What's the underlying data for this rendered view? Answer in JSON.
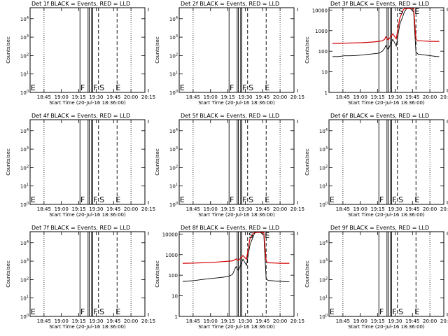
{
  "x_tick_labels": [
    "18:45",
    "19:00",
    "19:15",
    "19:30",
    "19:45",
    "20:00",
    "20:15"
  ],
  "x_label": "Start Time (20-Jul-16 18:36:00)",
  "y_label": "Counts/sec",
  "marker_labels": [
    "E",
    "F",
    "F",
    "S",
    "E"
  ],
  "colors": {
    "events": "#000000",
    "lld": "#d40000"
  },
  "chart_data": [
    {
      "type": "line",
      "title": "Det 1f BLACK = Events, RED = LLD",
      "y_tick_labels": [
        "10^0",
        "10^1",
        "10^2",
        "10^3",
        "10^4"
      ],
      "yscale": "log",
      "has_data": false,
      "series": []
    },
    {
      "type": "line",
      "title": "Det 2f BLACK = Events, RED = LLD",
      "y_tick_labels": [
        "10^0",
        "10^1",
        "10^2",
        "10^3",
        "10^4"
      ],
      "yscale": "log",
      "has_data": false,
      "series": []
    },
    {
      "type": "line",
      "title": "Det 3f BLACK = Events, RED = LLD",
      "y_tick_labels": [
        "1",
        "10",
        "100",
        "1000",
        "10000"
      ],
      "yscale": "log",
      "ylim": [
        1,
        13000
      ],
      "has_data": true,
      "series": [
        {
          "color": "#000000",
          "x": [
            0,
            5,
            10,
            15,
            20,
            25,
            30,
            35,
            40,
            43,
            45,
            46,
            48,
            52,
            55,
            58,
            61,
            62,
            64,
            67,
            70,
            72,
            73,
            74,
            76,
            80,
            85,
            90,
            92
          ],
          "y": [
            55,
            55,
            60,
            60,
            62,
            65,
            70,
            75,
            80,
            100,
            140,
            190,
            120,
            380,
            180,
            2000,
            5500,
            8000,
            12000,
            12000,
            8000,
            90,
            80,
            70,
            70,
            65,
            60,
            55,
            55
          ]
        },
        {
          "color": "#d40000",
          "x": [
            0,
            5,
            10,
            15,
            20,
            25,
            30,
            35,
            40,
            43,
            45,
            46,
            48,
            52,
            55,
            58,
            61,
            62,
            64,
            67,
            70,
            72,
            73,
            74,
            76,
            80,
            85,
            90,
            92
          ],
          "y": [
            240,
            240,
            245,
            250,
            255,
            260,
            270,
            280,
            300,
            320,
            380,
            500,
            350,
            700,
            400,
            4000,
            10000,
            12000,
            12000,
            12000,
            12000,
            400,
            330,
            320,
            320,
            310,
            300,
            300,
            300
          ]
        }
      ]
    },
    {
      "type": "line",
      "title": "Det 4f BLACK = Events, RED = LLD",
      "y_tick_labels": [
        "10^0",
        "10^1",
        "10^2",
        "10^3",
        "10^4"
      ],
      "yscale": "log",
      "has_data": false,
      "series": []
    },
    {
      "type": "line",
      "title": "Det 5f BLACK = Events, RED = LLD",
      "y_tick_labels": [
        "10^0",
        "10^1",
        "10^2",
        "10^3",
        "10^4"
      ],
      "yscale": "log",
      "has_data": false,
      "series": []
    },
    {
      "type": "line",
      "title": "Det 6f BLACK = Events, RED = LLD",
      "y_tick_labels": [
        "10^0",
        "10^1",
        "10^2",
        "10^3",
        "10^4"
      ],
      "yscale": "log",
      "has_data": false,
      "series": []
    },
    {
      "type": "line",
      "title": "Det 7f BLACK = Events, RED = LLD",
      "y_tick_labels": [
        "10^0",
        "10^1",
        "10^2",
        "10^3",
        "10^4"
      ],
      "yscale": "log",
      "has_data": false,
      "series": []
    },
    {
      "type": "line",
      "title": "Det 8f BLACK = Events, RED = LLD",
      "y_tick_labels": [
        "1",
        "10",
        "100",
        "1000",
        "10000"
      ],
      "yscale": "log",
      "ylim": [
        1,
        13000
      ],
      "has_data": true,
      "series": [
        {
          "color": "#000000",
          "x": [
            0,
            5,
            10,
            15,
            20,
            25,
            30,
            35,
            40,
            43,
            45,
            46,
            48,
            52,
            55,
            58,
            61,
            62,
            64,
            67,
            70,
            72,
            73,
            74,
            76,
            80,
            85,
            90,
            92
          ],
          "y": [
            50,
            52,
            55,
            60,
            65,
            70,
            75,
            80,
            90,
            110,
            200,
            260,
            170,
            600,
            300,
            3000,
            8000,
            11000,
            12000,
            12000,
            9000,
            70,
            60,
            55,
            55,
            52,
            50,
            48,
            48
          ]
        },
        {
          "color": "#d40000",
          "x": [
            0,
            5,
            10,
            15,
            20,
            25,
            30,
            35,
            40,
            43,
            45,
            46,
            48,
            52,
            55,
            58,
            61,
            62,
            64,
            67,
            70,
            72,
            73,
            74,
            76,
            80,
            85,
            90,
            92
          ],
          "y": [
            380,
            385,
            390,
            400,
            410,
            420,
            440,
            460,
            480,
            500,
            560,
            620,
            520,
            900,
            600,
            6000,
            11000,
            12000,
            12000,
            12000,
            12000,
            500,
            420,
            400,
            400,
            390,
            380,
            380,
            380
          ]
        }
      ]
    },
    {
      "type": "line",
      "title": "Det 9f BLACK = Events, RED = LLD",
      "y_tick_labels": [
        "10^0",
        "10^1",
        "10^2",
        "10^3",
        "10^4"
      ],
      "yscale": "log",
      "has_data": false,
      "series": []
    }
  ]
}
